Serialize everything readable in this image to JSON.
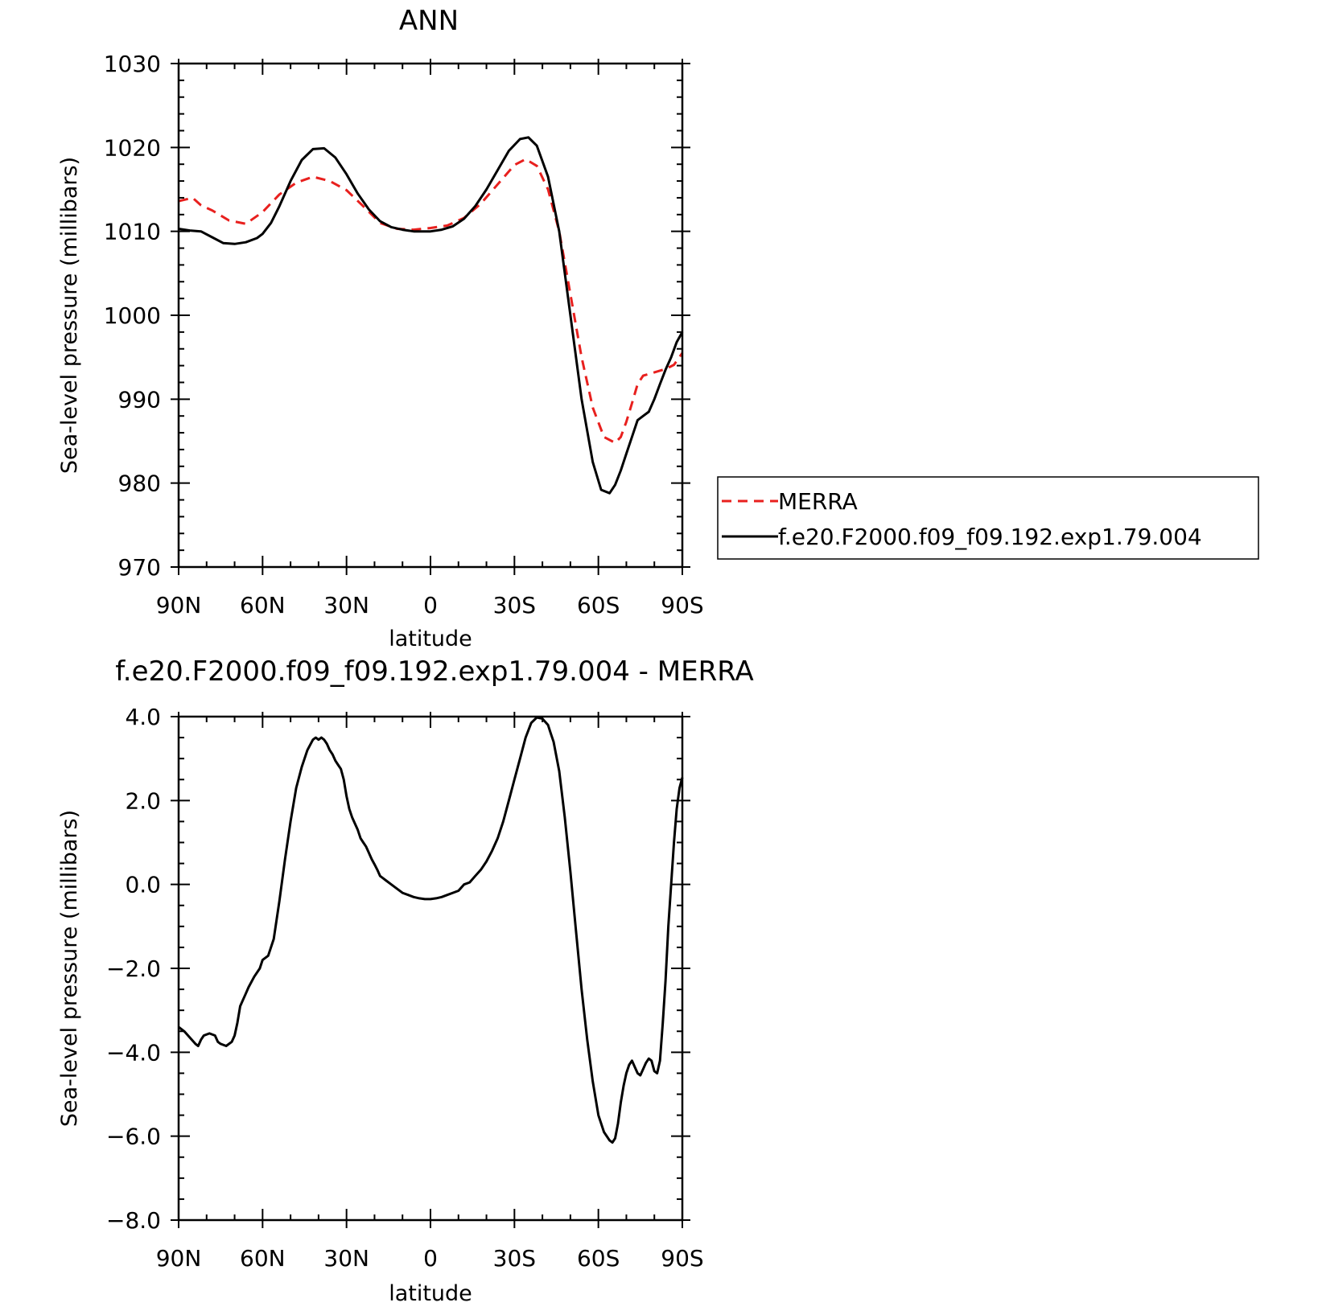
{
  "chart_data": [
    {
      "type": "line",
      "title": "ANN",
      "xlabel": "latitude",
      "ylabel": "Sea-level pressure (millibars)",
      "xlim": [
        90,
        -90
      ],
      "ylim": [
        970,
        1030
      ],
      "x_tick_values": [
        90,
        60,
        30,
        0,
        -30,
        -60,
        -90
      ],
      "x_tick_labels": [
        "90N",
        "60N",
        "30N",
        "0",
        "30S",
        "60S",
        "90S"
      ],
      "y_tick_values": [
        970,
        980,
        990,
        1000,
        1010,
        1020,
        1030
      ],
      "y_tick_labels": [
        "970",
        "980",
        "990",
        "1000",
        "1010",
        "1020",
        "1030"
      ],
      "legend_position": "right",
      "grid": false,
      "series": [
        {
          "name": "MERRA",
          "color": "#e8201e",
          "dash": "dashed",
          "x": [
            90,
            85,
            82,
            78,
            72,
            66,
            60,
            54,
            48,
            42,
            36,
            30,
            24,
            18,
            12,
            6,
            0,
            -6,
            -12,
            -18,
            -24,
            -30,
            -34,
            -38,
            -42,
            -46,
            -50,
            -54,
            -58,
            -62,
            -66,
            -68,
            -70,
            -72,
            -74,
            -76,
            -78,
            -81,
            -84,
            -87,
            -90
          ],
          "y": [
            1013.6,
            1014.0,
            1013.1,
            1012.5,
            1011.3,
            1010.9,
            1012.3,
            1014.4,
            1015.8,
            1016.5,
            1016.0,
            1014.9,
            1013.0,
            1011.0,
            1010.3,
            1010.2,
            1010.4,
            1010.7,
            1011.6,
            1013.3,
            1015.6,
            1017.9,
            1018.6,
            1017.8,
            1015.0,
            1010.0,
            1002.5,
            995.0,
            989.0,
            985.5,
            984.8,
            985.5,
            987.3,
            989.5,
            991.8,
            992.8,
            993.0,
            993.3,
            993.6,
            994.1,
            995.5
          ]
        },
        {
          "name": "f.e20.F2000.f09_f09.192.exp1.79.004",
          "color": "#000000",
          "dash": "solid",
          "x": [
            90,
            86,
            82,
            78,
            74,
            70,
            66,
            62,
            60,
            57,
            54,
            50,
            46,
            42,
            38,
            34,
            30,
            26,
            22,
            18,
            14,
            10,
            6,
            3,
            0,
            -4,
            -8,
            -12,
            -16,
            -20,
            -24,
            -28,
            -32,
            -35,
            -38,
            -42,
            -46,
            -50,
            -54,
            -58,
            -61,
            -64,
            -66,
            -68,
            -70,
            -72,
            -74,
            -76,
            -78,
            -80,
            -82,
            -84,
            -86,
            -88,
            -90
          ],
          "y": [
            1010.3,
            1010.1,
            1010.0,
            1009.3,
            1008.6,
            1008.5,
            1008.7,
            1009.2,
            1009.7,
            1011.0,
            1013.0,
            1016.0,
            1018.5,
            1019.8,
            1019.9,
            1018.8,
            1016.8,
            1014.5,
            1012.6,
            1011.2,
            1010.5,
            1010.2,
            1010.0,
            1010.0,
            1010.0,
            1010.2,
            1010.6,
            1011.5,
            1013.0,
            1015.0,
            1017.3,
            1019.6,
            1021.0,
            1021.2,
            1020.2,
            1016.5,
            1010.0,
            1000.0,
            990.0,
            982.5,
            979.2,
            978.8,
            979.8,
            981.5,
            983.5,
            985.5,
            987.5,
            988.0,
            988.5,
            990.0,
            991.8,
            993.5,
            995.0,
            996.8,
            998.0
          ]
        }
      ]
    },
    {
      "type": "line",
      "title": "f.e20.F2000.f09_f09.192.exp1.79.004 - MERRA",
      "xlabel": "latitude",
      "ylabel": "Sea-level pressure (millibars)",
      "xlim": [
        90,
        -90
      ],
      "ylim": [
        -8.0,
        4.0
      ],
      "x_tick_values": [
        90,
        60,
        30,
        0,
        -30,
        -60,
        -90
      ],
      "x_tick_labels": [
        "90N",
        "60N",
        "30N",
        "0",
        "30S",
        "60S",
        "90S"
      ],
      "y_tick_values": [
        -8,
        -6,
        -4,
        -2,
        0,
        2,
        4
      ],
      "y_tick_labels": [
        "−8.0",
        "−6.0",
        "−4.0",
        "−2.0",
        "0.0",
        "2.0",
        "4.0"
      ],
      "grid": false,
      "series": [
        {
          "color": "#000000",
          "x": [
            90,
            88,
            84,
            83,
            82,
            81,
            79,
            77,
            76,
            75,
            73,
            71,
            70,
            69,
            68,
            66,
            65,
            63,
            61,
            60,
            58,
            56,
            54,
            52,
            50,
            48,
            46,
            44,
            42,
            41,
            40,
            39,
            38,
            37,
            36,
            35,
            34,
            33,
            32,
            31,
            30,
            29,
            28,
            27,
            26,
            25,
            24,
            23,
            22,
            21,
            20,
            19,
            18,
            17,
            16,
            14,
            12,
            10,
            8,
            6,
            4,
            2,
            0,
            -2,
            -4,
            -6,
            -8,
            -10,
            -12,
            -14,
            -16,
            -18,
            -20,
            -22,
            -24,
            -26,
            -28,
            -30,
            -32,
            -34,
            -36,
            -38,
            -40,
            -42,
            -43,
            -44,
            -46,
            -48,
            -50,
            -52,
            -54,
            -56,
            -58,
            -60,
            -62,
            -64,
            -65,
            -66,
            -67,
            -68,
            -69,
            -70,
            -71,
            -72,
            -73,
            -74,
            -75,
            -76,
            -77,
            -78,
            -79,
            -80,
            -81,
            -82,
            -83,
            -84,
            -85,
            -86,
            -87,
            -88,
            -89,
            -90
          ],
          "y": [
            -3.4,
            -3.5,
            -3.8,
            -3.85,
            -3.7,
            -3.6,
            -3.55,
            -3.6,
            -3.75,
            -3.8,
            -3.85,
            -3.75,
            -3.6,
            -3.3,
            -2.9,
            -2.6,
            -2.45,
            -2.2,
            -2.0,
            -1.8,
            -1.7,
            -1.3,
            -0.4,
            0.6,
            1.5,
            2.3,
            2.8,
            3.2,
            3.45,
            3.5,
            3.45,
            3.5,
            3.45,
            3.35,
            3.2,
            3.1,
            2.95,
            2.85,
            2.75,
            2.5,
            2.1,
            1.8,
            1.6,
            1.45,
            1.3,
            1.1,
            1.0,
            0.9,
            0.75,
            0.6,
            0.48,
            0.35,
            0.2,
            0.15,
            0.1,
            0.0,
            -0.1,
            -0.2,
            -0.25,
            -0.3,
            -0.33,
            -0.35,
            -0.35,
            -0.33,
            -0.3,
            -0.25,
            -0.2,
            -0.15,
            0.0,
            0.05,
            0.2,
            0.35,
            0.55,
            0.8,
            1.1,
            1.5,
            2.0,
            2.5,
            3.0,
            3.5,
            3.85,
            3.98,
            3.95,
            3.8,
            3.6,
            3.4,
            2.7,
            1.6,
            0.3,
            -1.1,
            -2.5,
            -3.7,
            -4.7,
            -5.5,
            -5.9,
            -6.1,
            -6.15,
            -6.05,
            -5.7,
            -5.2,
            -4.8,
            -4.5,
            -4.3,
            -4.2,
            -4.35,
            -4.5,
            -4.55,
            -4.4,
            -4.25,
            -4.15,
            -4.2,
            -4.45,
            -4.5,
            -4.2,
            -3.3,
            -2.3,
            -1.0,
            0.0,
            1.0,
            1.8,
            2.3,
            2.55
          ]
        }
      ]
    }
  ]
}
